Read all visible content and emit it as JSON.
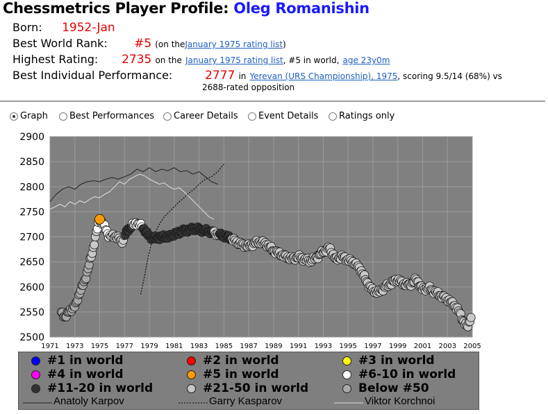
{
  "header": {
    "title_prefix": "Chessmetrics Player Profile:",
    "player_name": "Oleg Romanishin"
  },
  "info": {
    "born_label": "Born:",
    "born_value": "1952-Jan",
    "world_rank_label": "Best World Rank:",
    "world_rank_value": "#5",
    "world_rank_pre": "(on the",
    "world_rank_link": "January 1975 rating list",
    "world_rank_post": ")",
    "highest_label": "Highest Rating:",
    "highest_value": "2735",
    "highest_pre": "on the",
    "highest_link": "January 1975 rating list",
    "highest_mid": ", #5 in world,",
    "highest_age_link": "age 23y0m",
    "perf_label": "Best Individual Performance:",
    "perf_value": "2777",
    "perf_pre": "in",
    "perf_link": "Yerevan (URS Championship), 1975",
    "perf_post": ", scoring 9.5/14 (68%) vs",
    "perf_line2": "2688-rated opposition"
  },
  "view_options": [
    {
      "label": "Graph",
      "checked": true
    },
    {
      "label": "Best Performances",
      "checked": false
    },
    {
      "label": "Career Details",
      "checked": false
    },
    {
      "label": "Event Details",
      "checked": false
    },
    {
      "label": "Ratings only",
      "checked": false
    }
  ],
  "colors": {
    "plot_bg": "#808080",
    "rank_1": "#0000ff",
    "rank_2_4": "#ff0000",
    "rank_3": "#ffff00",
    "rank_4": "#ff00ff",
    "rank_5": "#ff9900",
    "rank_6_10": "#ffffff",
    "rank_11_20": "#333333",
    "rank_21_50": "#c8c8c8",
    "below_50": "#a8a8a8"
  },
  "legend": {
    "items": [
      {
        "label": "#1 in world",
        "color": "#0000ff"
      },
      {
        "label": "#2 in world",
        "color": "#ff0000"
      },
      {
        "label": "#3 in world",
        "color": "#ffff00"
      },
      {
        "label": "#4 in world",
        "color": "#ff00ff"
      },
      {
        "label": "#5 in world",
        "color": "#ff9900"
      },
      {
        "label": "#6-10 in world",
        "color": "#ffffff"
      },
      {
        "label": "#11-20 in world",
        "color": "#333333"
      },
      {
        "label": "#21-50 in world",
        "color": "#c8c8c8"
      },
      {
        "label": "Below #50",
        "color": "#a8a8a8"
      }
    ],
    "lines": [
      {
        "label": "Anatoly Karpov",
        "style": "solid"
      },
      {
        "label": "Garry Kasparov",
        "style": "dotted"
      },
      {
        "label": "Viktor Korchnoi",
        "style": "solid-light"
      }
    ]
  },
  "chart_data": {
    "type": "scatter",
    "xlim": [
      1971,
      2005
    ],
    "ylim": [
      2500,
      2900
    ],
    "x_ticks": [
      "1971",
      "1973",
      "1975",
      "1977",
      "1979",
      "1981",
      "1983",
      "1985",
      "1987",
      "1989",
      "1991",
      "1993",
      "1995",
      "1997",
      "1999",
      "2001",
      "2003",
      "2005"
    ],
    "y_ticks": [
      "2900",
      "2850",
      "2800",
      "2750",
      "2700",
      "2650",
      "2600",
      "2550",
      "2500"
    ],
    "grid": true,
    "legend_position": "bottom",
    "anchors": [
      [
        1971.9,
        2548
      ],
      [
        1972.2,
        2540
      ],
      [
        1972.6,
        2552
      ],
      [
        1973.1,
        2565
      ],
      [
        1973.4,
        2590
      ],
      [
        1973.8,
        2612
      ],
      [
        1974.1,
        2640
      ],
      [
        1974.4,
        2668
      ],
      [
        1974.7,
        2705
      ],
      [
        1975.0,
        2735
      ],
      [
        1975.3,
        2725
      ],
      [
        1975.8,
        2700
      ],
      [
        1976.3,
        2702
      ],
      [
        1976.8,
        2690
      ],
      [
        1977.2,
        2712
      ],
      [
        1977.6,
        2722
      ],
      [
        1978.0,
        2728
      ],
      [
        1978.5,
        2718
      ],
      [
        1979.0,
        2700
      ],
      [
        1979.5,
        2697
      ],
      [
        1980.0,
        2700
      ],
      [
        1980.5,
        2700
      ],
      [
        1981.0,
        2705
      ],
      [
        1981.5,
        2710
      ],
      [
        1982.0,
        2713
      ],
      [
        1982.5,
        2716
      ],
      [
        1983.0,
        2715
      ],
      [
        1983.5,
        2712
      ],
      [
        1984.0,
        2710
      ],
      [
        1984.5,
        2705
      ],
      [
        1985.0,
        2702
      ],
      [
        1985.5,
        2698
      ],
      [
        1986.0,
        2690
      ],
      [
        1986.5,
        2684
      ],
      [
        1987.0,
        2681
      ],
      [
        1987.5,
        2688
      ],
      [
        1988.0,
        2690
      ],
      [
        1988.5,
        2684
      ],
      [
        1989.0,
        2672
      ],
      [
        1989.5,
        2666
      ],
      [
        1990.0,
        2660
      ],
      [
        1990.5,
        2656
      ],
      [
        1991.0,
        2660
      ],
      [
        1991.5,
        2655
      ],
      [
        1992.0,
        2652
      ],
      [
        1992.5,
        2660
      ],
      [
        1993.0,
        2670
      ],
      [
        1993.5,
        2678
      ],
      [
        1994.0,
        2655
      ],
      [
        1994.5,
        2660
      ],
      [
        1995.0,
        2654
      ],
      [
        1995.5,
        2648
      ],
      [
        1996.0,
        2635
      ],
      [
        1996.5,
        2610
      ],
      [
        1997.0,
        2592
      ],
      [
        1997.5,
        2590
      ],
      [
        1998.0,
        2600
      ],
      [
        1998.5,
        2608
      ],
      [
        1999.0,
        2615
      ],
      [
        1999.5,
        2605
      ],
      [
        2000.0,
        2605
      ],
      [
        2000.5,
        2615
      ],
      [
        2001.0,
        2595
      ],
      [
        2001.5,
        2598
      ],
      [
        2002.0,
        2590
      ],
      [
        2002.5,
        2582
      ],
      [
        2003.0,
        2575
      ],
      [
        2003.5,
        2565
      ],
      [
        2004.0,
        2548
      ],
      [
        2004.3,
        2530
      ],
      [
        2004.6,
        2520
      ],
      [
        2004.9,
        2540
      ]
    ],
    "rank_categories": [
      {
        "x_range": [
          1971.9,
          1974.3
        ],
        "category": "below_50"
      },
      {
        "x_range": [
          1974.3,
          1974.8
        ],
        "category": "rank_21_50"
      },
      {
        "x_range": [
          1974.8,
          1975.0
        ],
        "category": "rank_6_10"
      },
      {
        "x_range": [
          1975.0,
          1975.2
        ],
        "category": "rank_5"
      },
      {
        "x_range": [
          1975.2,
          1976.0
        ],
        "category": "rank_6_10"
      },
      {
        "x_range": [
          1976.0,
          1977.0
        ],
        "category": "rank_21_50"
      },
      {
        "x_range": [
          1977.0,
          1977.6
        ],
        "category": "rank_11_20"
      },
      {
        "x_range": [
          1977.6,
          1978.4
        ],
        "category": "rank_6_10"
      },
      {
        "x_range": [
          1978.4,
          1984.2
        ],
        "category": "rank_11_20"
      },
      {
        "x_range": [
          1984.2,
          1984.6
        ],
        "category": "rank_21_50"
      },
      {
        "x_range": [
          1984.6,
          1985.6
        ],
        "category": "rank_11_20"
      },
      {
        "x_range": [
          1985.6,
          2005.0
        ],
        "category": "rank_21_50"
      }
    ],
    "karpov": [
      [
        1971.0,
        2770
      ],
      [
        1971.5,
        2785
      ],
      [
        1972.0,
        2795
      ],
      [
        1972.5,
        2800
      ],
      [
        1973.0,
        2795
      ],
      [
        1973.5,
        2805
      ],
      [
        1974.0,
        2810
      ],
      [
        1974.5,
        2812
      ],
      [
        1975.0,
        2810
      ],
      [
        1975.5,
        2815
      ],
      [
        1976.0,
        2818
      ],
      [
        1976.5,
        2815
      ],
      [
        1977.0,
        2820
      ],
      [
        1977.5,
        2825
      ],
      [
        1978.0,
        2835
      ],
      [
        1978.5,
        2830
      ],
      [
        1979.0,
        2838
      ],
      [
        1979.5,
        2830
      ],
      [
        1980.0,
        2835
      ],
      [
        1980.5,
        2832
      ],
      [
        1981.0,
        2838
      ],
      [
        1981.5,
        2830
      ],
      [
        1982.0,
        2832
      ],
      [
        1982.5,
        2825
      ],
      [
        1983.0,
        2830
      ],
      [
        1983.5,
        2820
      ],
      [
        1984.0,
        2810
      ],
      [
        1984.5,
        2805
      ]
    ],
    "kasparov": [
      [
        1978.3,
        2585
      ],
      [
        1978.6,
        2620
      ],
      [
        1978.9,
        2660
      ],
      [
        1979.2,
        2690
      ],
      [
        1979.5,
        2710
      ],
      [
        1979.8,
        2725
      ],
      [
        1980.2,
        2740
      ],
      [
        1980.6,
        2750
      ],
      [
        1981.0,
        2760
      ],
      [
        1981.4,
        2770
      ],
      [
        1981.8,
        2778
      ],
      [
        1982.2,
        2788
      ],
      [
        1982.6,
        2795
      ],
      [
        1983.0,
        2805
      ],
      [
        1983.5,
        2815
      ],
      [
        1984.0,
        2820
      ],
      [
        1984.5,
        2830
      ],
      [
        1985.0,
        2845
      ]
    ],
    "korchnoi": [
      [
        1971.0,
        2755
      ],
      [
        1971.4,
        2760
      ],
      [
        1971.8,
        2765
      ],
      [
        1972.2,
        2760
      ],
      [
        1972.6,
        2770
      ],
      [
        1973.0,
        2765
      ],
      [
        1973.4,
        2772
      ],
      [
        1973.8,
        2768
      ],
      [
        1974.2,
        2775
      ],
      [
        1974.6,
        2780
      ],
      [
        1975.0,
        2778
      ],
      [
        1975.4,
        2785
      ],
      [
        1975.8,
        2790
      ],
      [
        1976.2,
        2800
      ],
      [
        1976.6,
        2810
      ],
      [
        1977.0,
        2805
      ],
      [
        1977.4,
        2815
      ],
      [
        1977.8,
        2820
      ],
      [
        1978.2,
        2825
      ],
      [
        1978.6,
        2822
      ],
      [
        1979.0,
        2815
      ],
      [
        1979.4,
        2810
      ],
      [
        1979.8,
        2805
      ],
      [
        1980.2,
        2808
      ],
      [
        1980.6,
        2800
      ],
      [
        1981.0,
        2795
      ],
      [
        1981.4,
        2798
      ],
      [
        1981.8,
        2790
      ],
      [
        1982.2,
        2780
      ],
      [
        1982.6,
        2770
      ],
      [
        1983.0,
        2760
      ],
      [
        1983.4,
        2750
      ],
      [
        1983.8,
        2740
      ],
      [
        1984.2,
        2735
      ]
    ]
  }
}
